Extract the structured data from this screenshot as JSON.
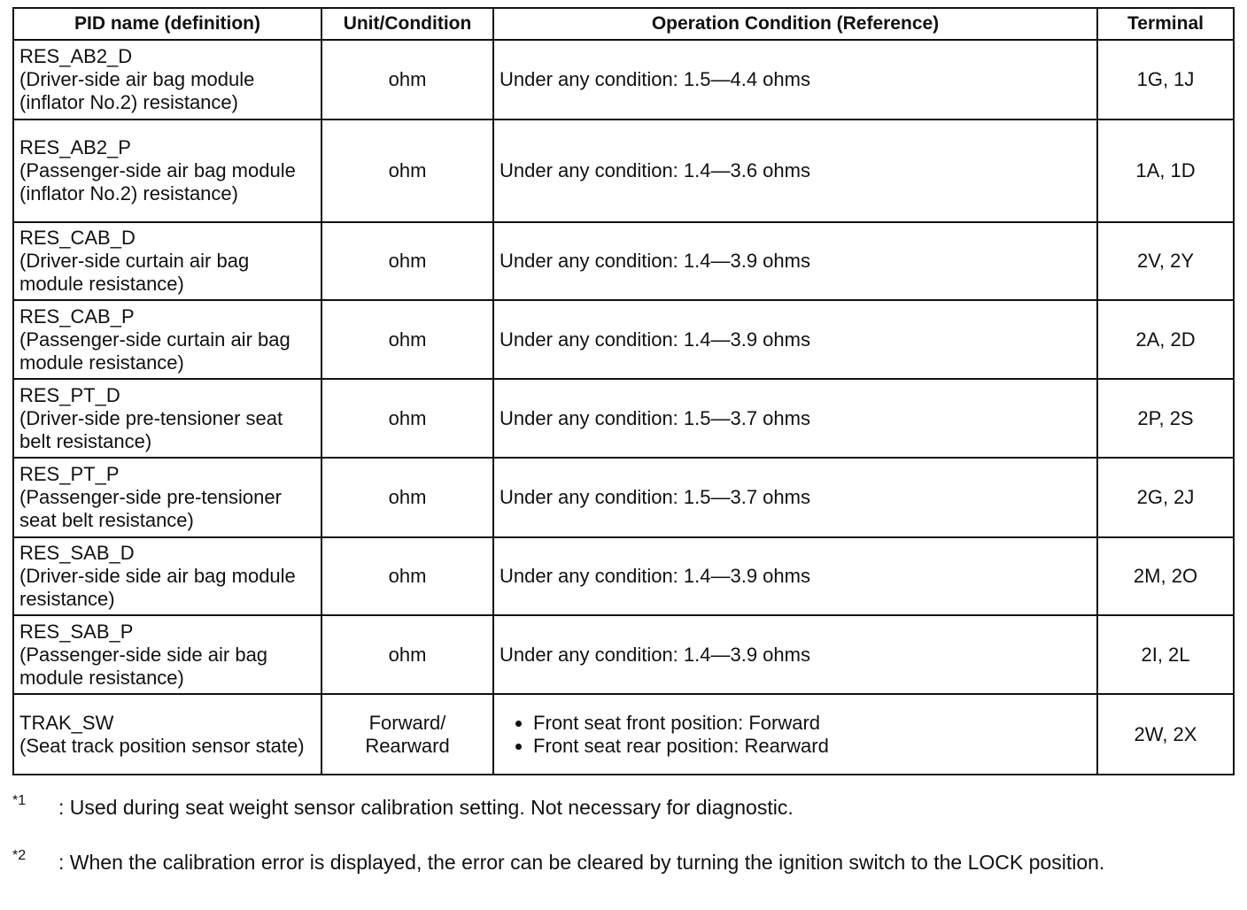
{
  "headers": [
    "PID name (definition)",
    "Unit/Condition",
    "Operation Condition (Reference)",
    "Terminal"
  ],
  "rows": [
    {
      "pid": "RES_AB2_D",
      "def": "(Driver-side air bag module (inflator No.2) resistance)",
      "unit": "ohm",
      "cond": "Under any condition: 1.5—4.4 ohms",
      "terminal": "1G, 1J"
    },
    {
      "pid": "RES_AB2_P",
      "def": "(Passenger-side air bag module (inflator No.2) resistance)",
      "unit": "ohm",
      "cond": "Under any condition: 1.4—3.6 ohms",
      "terminal": "1A, 1D"
    },
    {
      "pid": "RES_CAB_D",
      "def": "(Driver-side curtain air bag module resistance)",
      "unit": "ohm",
      "cond": "Under any condition: 1.4—3.9 ohms",
      "terminal": "2V, 2Y"
    },
    {
      "pid": "RES_CAB_P",
      "def": "(Passenger-side curtain air bag module resistance)",
      "unit": "ohm",
      "cond": "Under any condition: 1.4—3.9 ohms",
      "terminal": "2A, 2D"
    },
    {
      "pid": "RES_PT_D",
      "def": "(Driver-side pre-tensioner seat belt resistance)",
      "unit": "ohm",
      "cond": "Under any condition: 1.5—3.7 ohms",
      "terminal": "2P, 2S"
    },
    {
      "pid": "RES_PT_P",
      "def": "(Passenger-side pre-tensioner seat belt resistance)",
      "unit": "ohm",
      "cond": "Under any condition: 1.5—3.7 ohms",
      "terminal": "2G, 2J"
    },
    {
      "pid": "RES_SAB_D",
      "def": "(Driver-side side air bag module resistance)",
      "unit": "ohm",
      "cond": "Under any condition: 1.4—3.9 ohms",
      "terminal": "2M, 2O"
    },
    {
      "pid": "RES_SAB_P",
      "def": "(Passenger-side side air bag module resistance)",
      "unit": "ohm",
      "cond": "Under any condition: 1.4—3.9 ohms",
      "terminal": "2I, 2L"
    }
  ],
  "trak": {
    "pid": "TRAK_SW",
    "def": "(Seat track position sensor state)",
    "unit": "Forward/ Rearward",
    "bullets": [
      "Front seat front position: Forward",
      "Front seat rear position: Rearward"
    ],
    "terminal": "2W, 2X"
  },
  "footnotes": [
    {
      "mark": "*1",
      "text": ": Used during seat weight sensor calibration setting. Not necessary for diagnostic."
    },
    {
      "mark": "*2",
      "text": ": When the calibration error is displayed, the error can be cleared by turning the ignition switch to the LOCK position."
    }
  ]
}
